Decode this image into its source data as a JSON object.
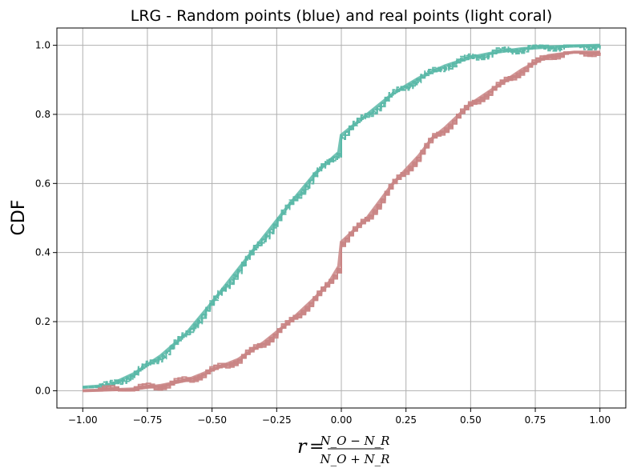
{
  "chart_data": {
    "type": "line",
    "title": "LRG - Random points (blue) and real points (light coral)",
    "ylabel": "CDF",
    "xlabel": {
      "lhs": "r",
      "numerator": "N_O − N_R",
      "denominator": "N_O + N_R"
    },
    "xlim": [
      -1.1,
      1.1
    ],
    "ylim": [
      -0.05,
      1.05
    ],
    "x_ticks": [
      -1.0,
      -0.75,
      -0.5,
      -0.25,
      0.0,
      0.25,
      0.5,
      0.75,
      1.0
    ],
    "x_tick_labels": [
      "−1.00",
      "−0.75",
      "−0.50",
      "−0.25",
      "0.00",
      "0.25",
      "0.50",
      "0.75",
      "1.00"
    ],
    "y_ticks": [
      0.0,
      0.2,
      0.4,
      0.6,
      0.8,
      1.0
    ],
    "y_tick_labels": [
      "0.0",
      "0.2",
      "0.4",
      "0.6",
      "0.8",
      "1.0"
    ],
    "grid": true,
    "legend": "none",
    "colors": {
      "random": "#5bb8a8",
      "real": "#c98585",
      "grid": "#b0b0b0"
    },
    "series": [
      {
        "group": "random",
        "x": [
          -1.0,
          -0.9,
          -0.8,
          -0.7,
          -0.6,
          -0.5,
          -0.4,
          -0.3,
          -0.2,
          -0.1,
          -0.01,
          0.0,
          0.1,
          0.2,
          0.3,
          0.4,
          0.5,
          0.6,
          0.7,
          0.8,
          0.9,
          1.0
        ],
        "y": [
          0.01,
          0.015,
          0.05,
          0.1,
          0.165,
          0.255,
          0.35,
          0.445,
          0.54,
          0.63,
          0.69,
          0.74,
          0.8,
          0.86,
          0.905,
          0.94,
          0.965,
          0.98,
          0.99,
          0.995,
          0.998,
          1.0
        ]
      },
      {
        "group": "real",
        "x": [
          -1.0,
          -0.8,
          -0.7,
          -0.6,
          -0.5,
          -0.4,
          -0.3,
          -0.2,
          -0.1,
          -0.05,
          -0.01,
          0.0,
          0.1,
          0.2,
          0.3,
          0.35,
          0.4,
          0.5,
          0.6,
          0.7,
          0.8,
          0.9,
          1.0
        ],
        "y": [
          0.0,
          0.005,
          0.015,
          0.03,
          0.06,
          0.09,
          0.14,
          0.2,
          0.27,
          0.31,
          0.36,
          0.43,
          0.5,
          0.6,
          0.68,
          0.73,
          0.76,
          0.83,
          0.88,
          0.93,
          0.97,
          0.98,
          0.98
        ]
      }
    ]
  }
}
